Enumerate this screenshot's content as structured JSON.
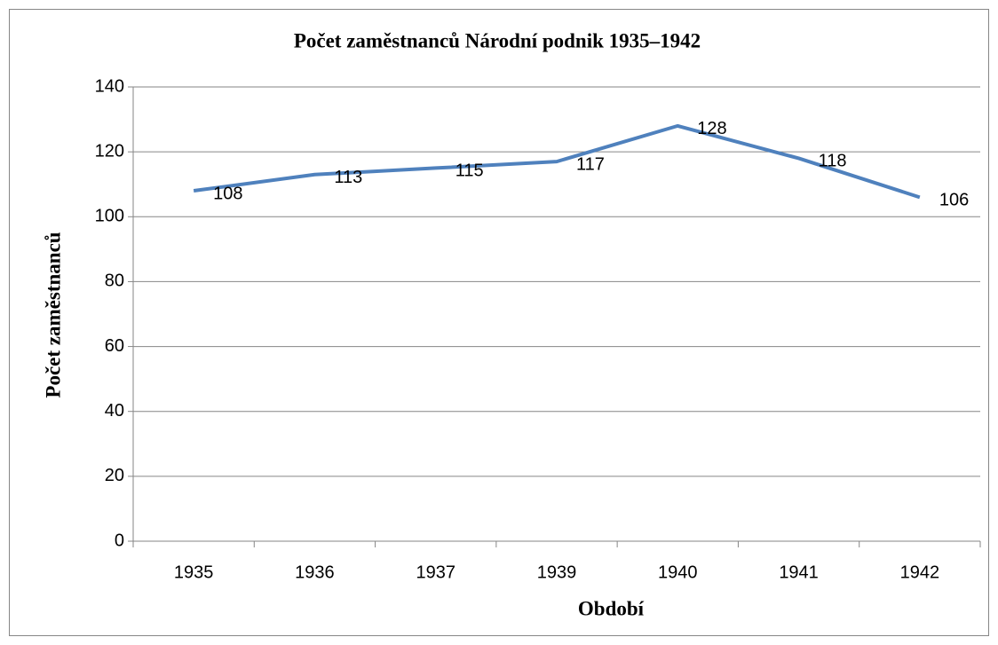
{
  "chart_data": {
    "type": "line",
    "title": "Počet zaměstnanců Národní podnik 1935–1942",
    "x_label": "Období",
    "y_label": "Počet zaměstnanců",
    "categories": [
      "1935",
      "1936",
      "1937",
      "1939",
      "1940",
      "1941",
      "1942"
    ],
    "series": [
      {
        "name": "Počet zaměstnanců",
        "color": "#4f81bd",
        "values": [
          108,
          113,
          115,
          117,
          128,
          118,
          106
        ]
      }
    ],
    "ylim": [
      0,
      140
    ],
    "yticks": [
      0,
      20,
      40,
      60,
      80,
      100,
      120,
      140
    ],
    "grid": true
  }
}
